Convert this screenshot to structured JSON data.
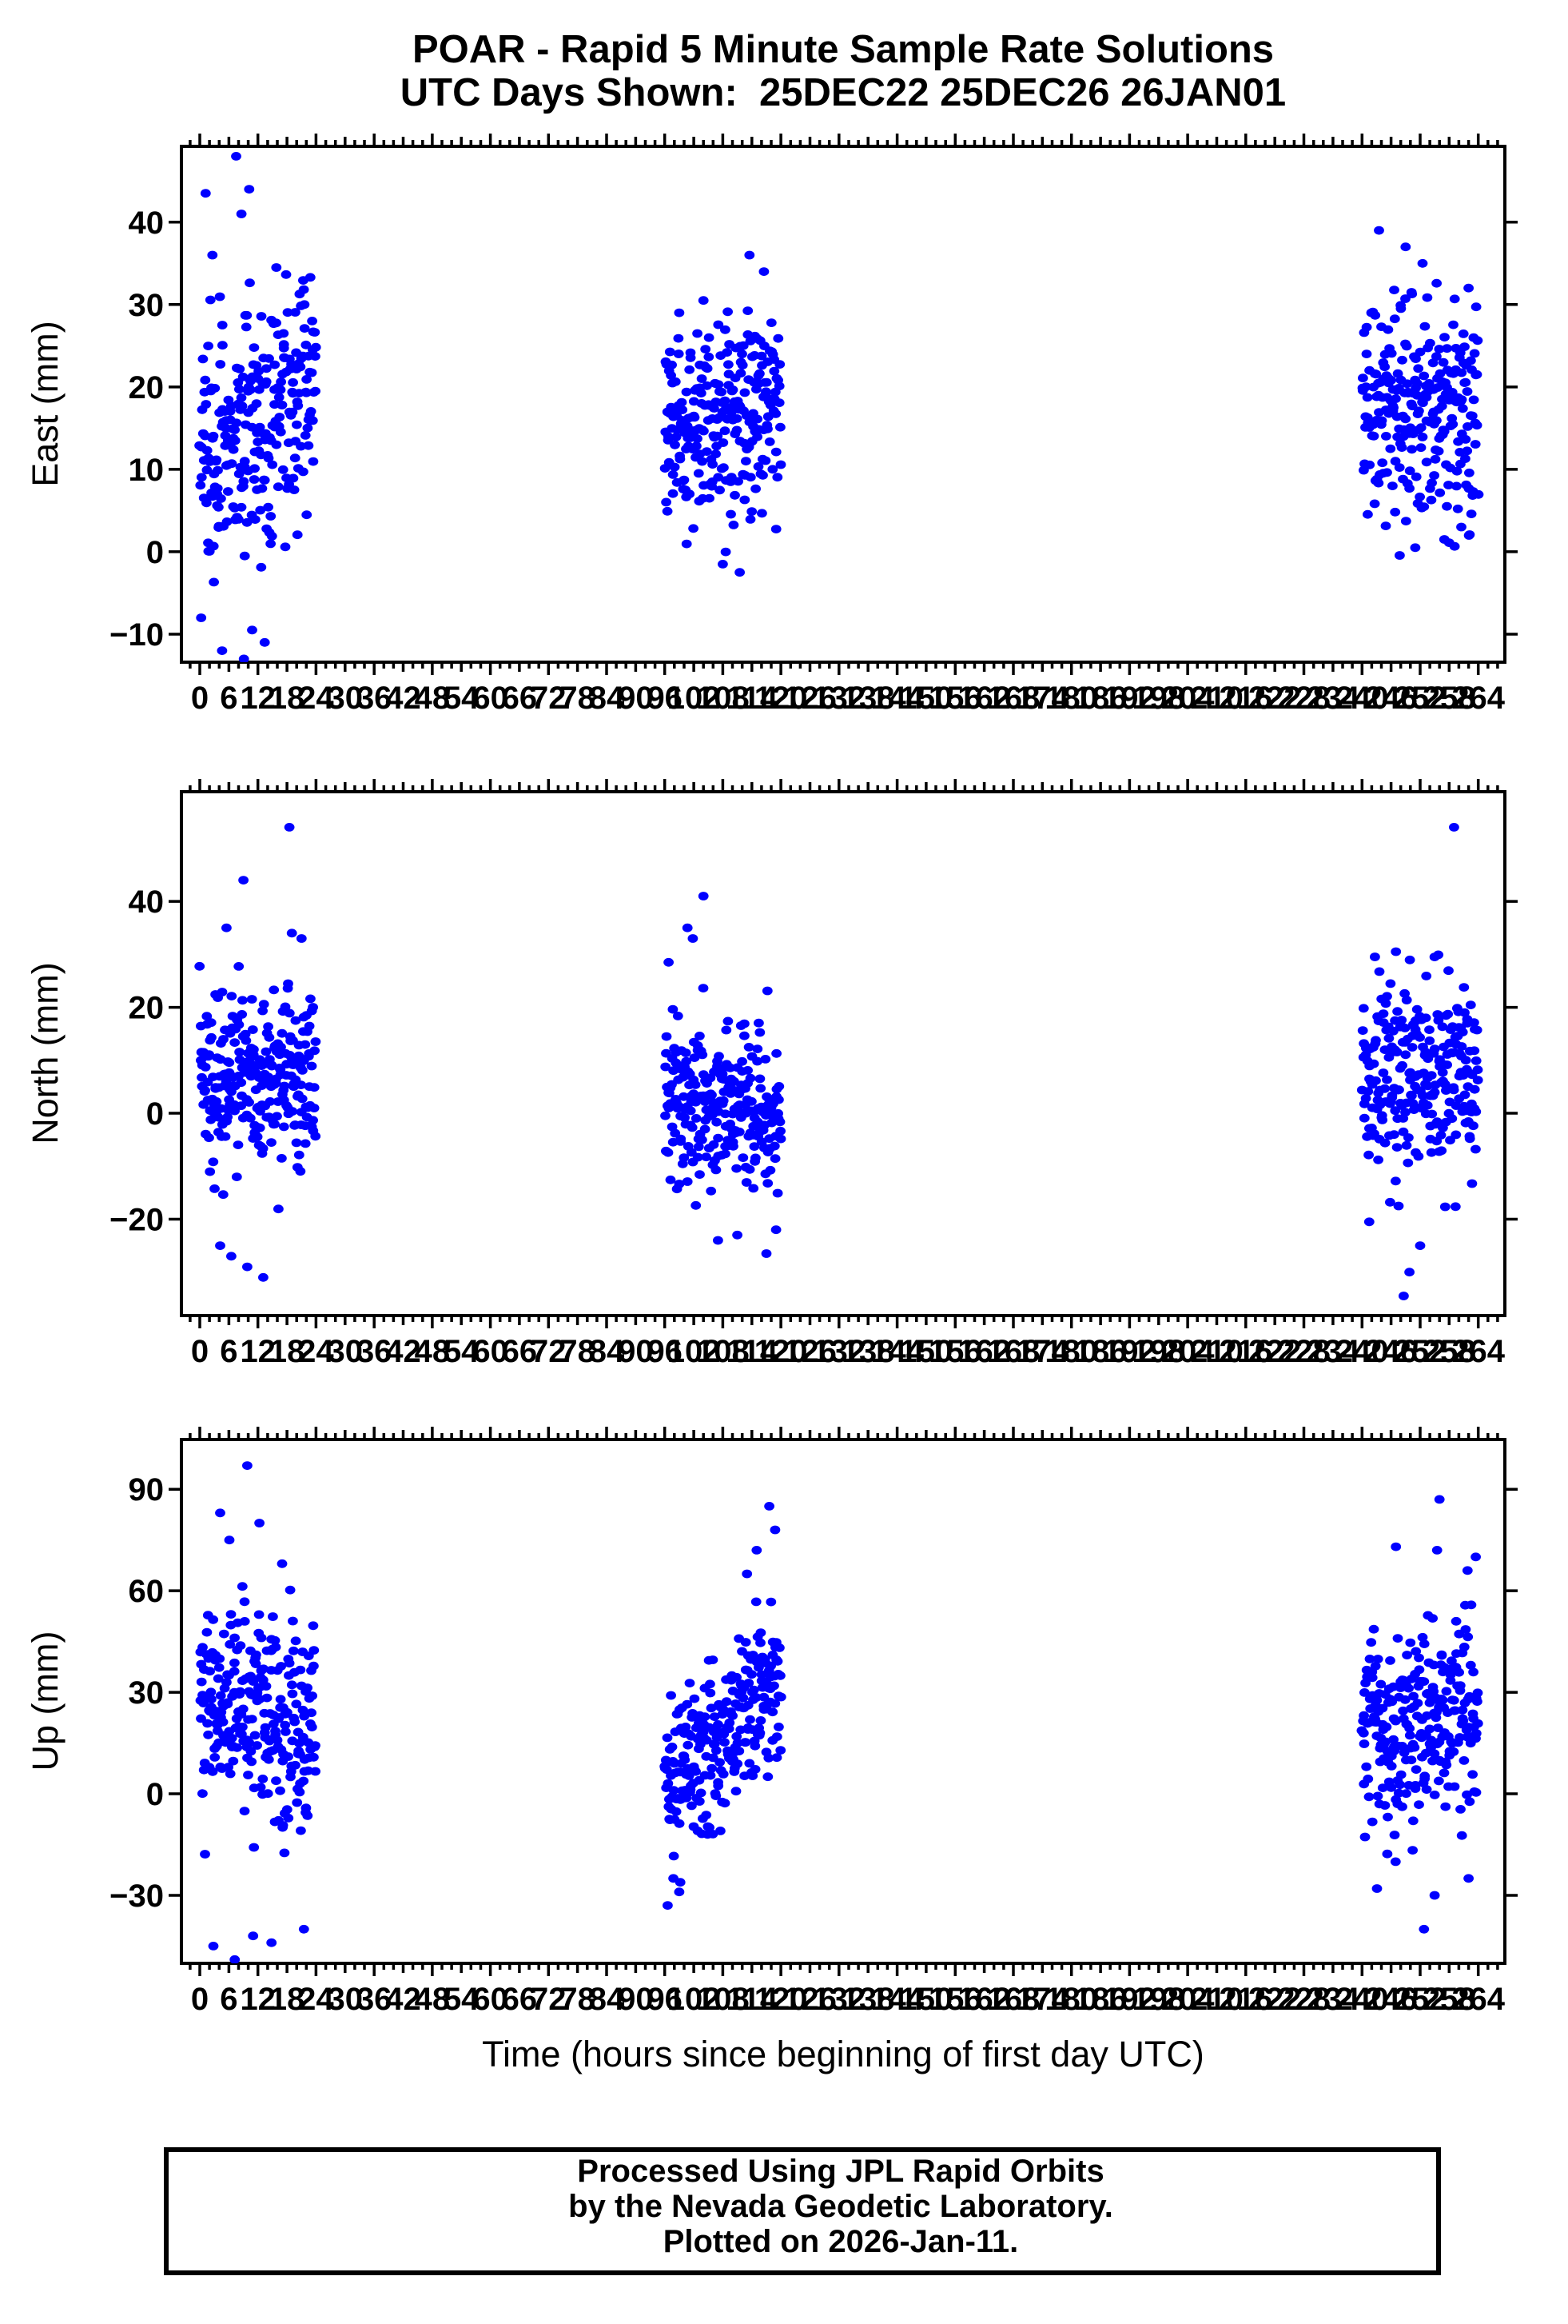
{
  "title": {
    "line1": "POAR - Rapid 5 Minute Sample Rate Solutions",
    "line2": "UTC Days Shown:  25DEC22 25DEC26 26JAN01"
  },
  "xaxis": {
    "title": "Time (hours since beginning of first day UTC)",
    "label_start": 0,
    "label_end": 264,
    "label_step": 6,
    "minor_step": 2,
    "major_step": 12,
    "domain": [
      -3.8,
      269.5
    ]
  },
  "footer": {
    "line1": "Processed Using JPL Rapid Orbits",
    "line2": "by the Nevada Geodetic Laboratory.",
    "line3": "Plotted on 2026-Jan-11."
  },
  "colors": {
    "marker": "#0000ff",
    "axis": "#000000",
    "background": "#ffffff"
  },
  "chart_data": [
    {
      "type": "scatter",
      "name": "East",
      "ylabel": "East (mm)",
      "yticks": [
        40,
        30,
        20,
        10,
        0,
        -10
      ],
      "ydomain": [
        -13.4,
        49.2
      ],
      "xdomain": [
        -3.8,
        269.5
      ],
      "grid": false,
      "legend": "none",
      "clusters": [
        {
          "day": "25DEC22",
          "hours": [
            0,
            24
          ],
          "n": 258,
          "mean_start": 13,
          "mean_end": 20,
          "std": 8,
          "clip": [
            -13,
            34
          ],
          "outliers": [
            [
              1.2,
              43.5
            ],
            [
              2.6,
              36
            ],
            [
              7.5,
              48
            ],
            [
              8.6,
              41
            ],
            [
              10.2,
              44
            ],
            [
              15.8,
              34.5
            ],
            [
              4.6,
              -12
            ],
            [
              9.1,
              -13
            ],
            [
              13.4,
              -11
            ],
            [
              10.8,
              -9.5
            ],
            [
              21.6,
              30
            ],
            [
              23.2,
              28
            ]
          ],
          "seed": 11
        },
        {
          "day": "25DEC26",
          "hours": [
            96,
            120
          ],
          "n": 258,
          "mean_start": 15,
          "mean_end": 18,
          "std": 6,
          "clip": [
            -3,
            30
          ],
          "outliers": [
            [
              113.5,
              36
            ],
            [
              116.5,
              34
            ],
            [
              104,
              30.5
            ],
            [
              99,
              29
            ],
            [
              111.5,
              -2.5
            ],
            [
              108,
              -1.5
            ]
          ],
          "seed": 12
        },
        {
          "day": "26JAN01",
          "hours": [
            240,
            264
          ],
          "n": 258,
          "mean_start": 19,
          "mean_end": 17,
          "std": 6.5,
          "clip": [
            -1,
            33
          ],
          "outliers": [
            [
              243.5,
              39
            ],
            [
              249,
              37
            ],
            [
              252.5,
              35
            ],
            [
              262,
              32
            ],
            [
              251,
              0.5
            ],
            [
              257,
              1.5
            ],
            [
              260.5,
              3
            ]
          ],
          "seed": 13
        }
      ]
    },
    {
      "type": "scatter",
      "name": "North",
      "ylabel": "North (mm)",
      "yticks": [
        40,
        20,
        0,
        -20
      ],
      "ydomain": [
        -38.2,
        60.7
      ],
      "xdomain": [
        -3.8,
        269.5
      ],
      "grid": false,
      "legend": "none",
      "clusters": [
        {
          "day": "25DEC22",
          "hours": [
            0,
            24
          ],
          "n": 258,
          "mean_start": 6,
          "mean_end": 5,
          "std": 8.5,
          "clip": [
            -24,
            30
          ],
          "outliers": [
            [
              18.5,
              54
            ],
            [
              9,
              44
            ],
            [
              5.5,
              35
            ],
            [
              19,
              34
            ],
            [
              21,
              33
            ],
            [
              4.2,
              -25
            ],
            [
              9.8,
              -29
            ],
            [
              13.1,
              -31
            ],
            [
              6.5,
              -27
            ]
          ],
          "seed": 21
        },
        {
          "day": "25DEC26",
          "hours": [
            96,
            120
          ],
          "n": 258,
          "mean_start": 3,
          "mean_end": 1,
          "std": 8,
          "clip": [
            -21,
            28
          ],
          "outliers": [
            [
              104,
              41
            ],
            [
              100.7,
              35
            ],
            [
              101.8,
              33
            ],
            [
              96.8,
              28.5
            ],
            [
              107,
              -24
            ],
            [
              111,
              -23
            ],
            [
              117,
              -26.5
            ],
            [
              119,
              -22
            ]
          ],
          "seed": 22
        },
        {
          "day": "26JAN01",
          "hours": [
            240,
            264
          ],
          "n": 258,
          "mean_start": 6,
          "mean_end": 9,
          "std": 9,
          "clip": [
            -20,
            30
          ],
          "outliers": [
            [
              259,
              54
            ],
            [
              247,
              30.5
            ],
            [
              255,
              29.5
            ],
            [
              241.5,
              -20.5
            ],
            [
              249.8,
              -30
            ],
            [
              248.6,
              -34.5
            ],
            [
              252,
              -25
            ]
          ],
          "seed": 23
        }
      ]
    },
    {
      "type": "scatter",
      "name": "Up",
      "ylabel": "Up (mm)",
      "yticks": [
        90,
        60,
        30,
        0,
        -30
      ],
      "ydomain": [
        -50.1,
        104.7
      ],
      "xdomain": [
        -3.8,
        269.5
      ],
      "grid": false,
      "legend": "none",
      "clusters": [
        {
          "day": "25DEC22",
          "hours": [
            0,
            24
          ],
          "n": 258,
          "mean_start": 28,
          "mean_end": 20,
          "std": 16,
          "clip": [
            -38,
            62
          ],
          "outliers": [
            [
              9.8,
              97
            ],
            [
              4.2,
              83
            ],
            [
              12.3,
              80
            ],
            [
              6.1,
              75
            ],
            [
              17,
              68
            ],
            [
              2.8,
              -45
            ],
            [
              7.2,
              -49
            ],
            [
              14.8,
              -44
            ],
            [
              21.5,
              -40
            ],
            [
              11,
              -42
            ]
          ],
          "seed": 31
        },
        {
          "day": "25DEC26",
          "hours": [
            96,
            120
          ],
          "n": 258,
          "mean_start": 2,
          "mean_end": 34,
          "std": 12,
          "clip": [
            -28,
            58
          ],
          "outliers": [
            [
              117.6,
              85
            ],
            [
              118.8,
              78
            ],
            [
              115,
              72
            ],
            [
              113,
              65
            ],
            [
              96.6,
              -33
            ],
            [
              97.8,
              -25
            ],
            [
              99,
              -29
            ]
          ],
          "seed": 32
        },
        {
          "day": "26JAN01",
          "hours": [
            240,
            264
          ],
          "n": 258,
          "mean_start": 17,
          "mean_end": 24,
          "std": 15,
          "clip": [
            -32,
            58
          ],
          "outliers": [
            [
              256,
              87
            ],
            [
              247,
              73
            ],
            [
              255.5,
              72
            ],
            [
              263.5,
              70
            ],
            [
              261.8,
              66
            ],
            [
              252.8,
              -40
            ],
            [
              243.1,
              -28
            ],
            [
              255,
              -30
            ],
            [
              262,
              -25
            ]
          ],
          "seed": 33
        }
      ]
    }
  ],
  "marker_style": {
    "shape": "ellipse",
    "rx": 6.4,
    "ry": 5.4
  }
}
